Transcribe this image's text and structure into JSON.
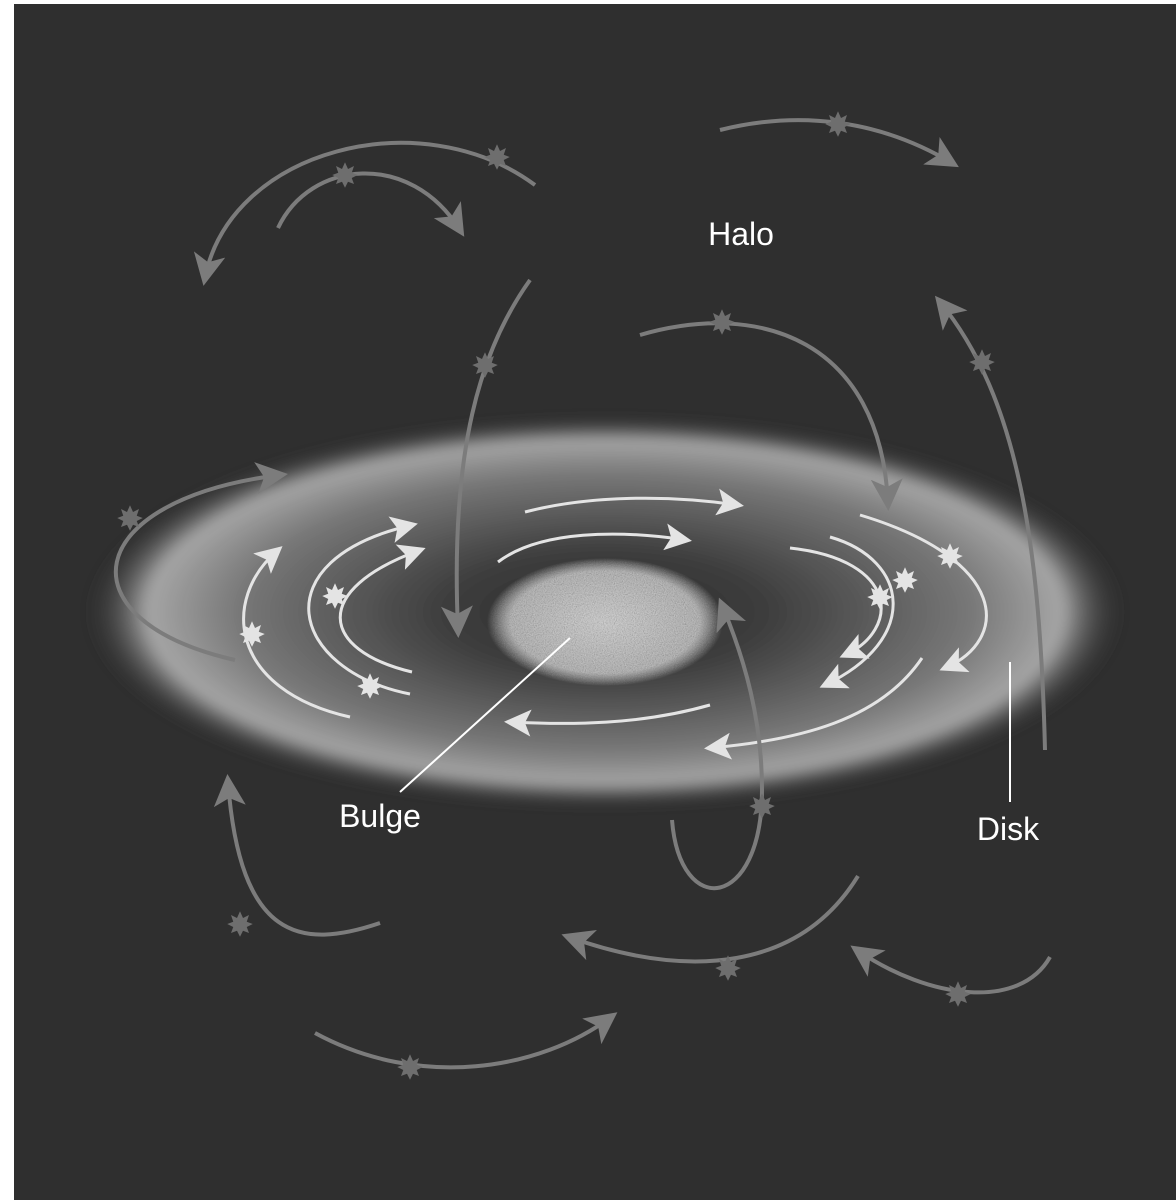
{
  "labels": {
    "halo": "Halo",
    "bulge": "Bulge",
    "disk": "Disk"
  }
}
